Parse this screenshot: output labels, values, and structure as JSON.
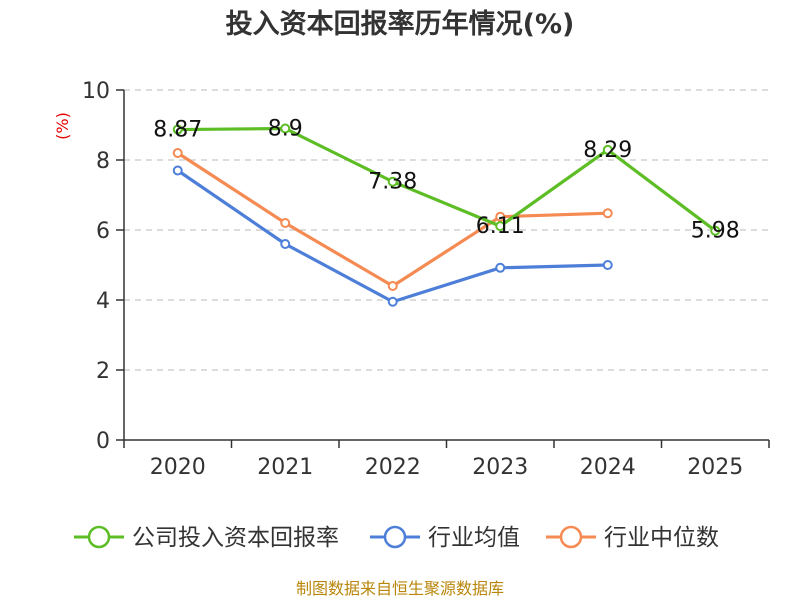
{
  "chart_data": {
    "type": "line",
    "title": "投入资本回报率历年情况(%)",
    "unit_label": "(%)",
    "categories": [
      "2020",
      "2021",
      "2022",
      "2023",
      "2024",
      "2025"
    ],
    "ylim": [
      0,
      10
    ],
    "yticks": [
      0,
      2,
      4,
      6,
      8,
      10
    ],
    "grid": true,
    "legend_position": "bottom",
    "series": [
      {
        "name": "公司投入资本回报率",
        "color": "#5cbd24",
        "values": [
          8.87,
          8.9,
          7.38,
          6.11,
          8.29,
          5.98
        ],
        "labels": [
          "8.87",
          "8.9",
          "7.38",
          "6.11",
          "8.29",
          "5.98"
        ]
      },
      {
        "name": "行业均值",
        "color": "#4e7fd8",
        "values": [
          7.7,
          5.6,
          3.95,
          4.92,
          5.0,
          null
        ]
      },
      {
        "name": "行业中位数",
        "color": "#f58a52",
        "values": [
          8.2,
          6.2,
          4.4,
          6.38,
          6.48,
          null
        ]
      }
    ],
    "source": "制图数据来自恒生聚源数据库"
  }
}
